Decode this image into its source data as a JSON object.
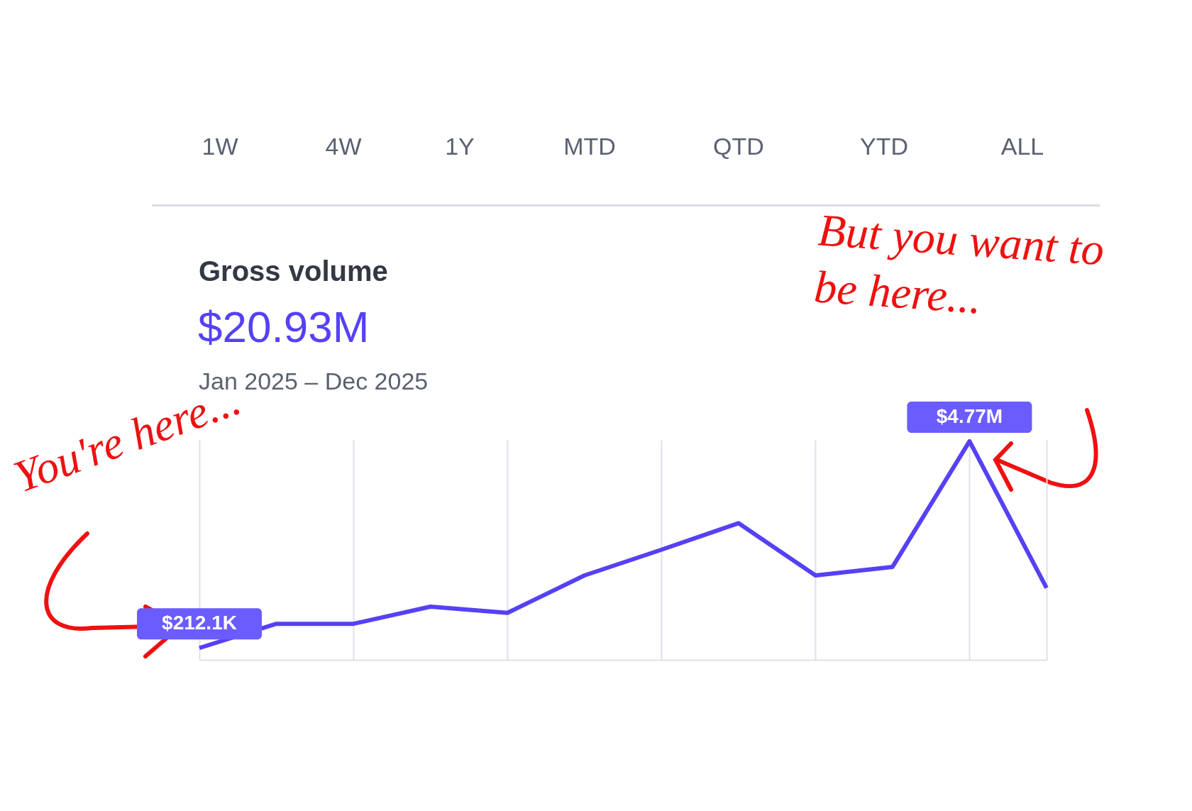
{
  "chart_data": {
    "type": "line",
    "title": "Gross volume",
    "subtitle": "Jan 2025 – Dec 2025",
    "ylim": [
      -50000,
      4800000
    ],
    "grid": "x",
    "marker": "none",
    "line_style": "solid",
    "categories": [
      null,
      null,
      null,
      null,
      null,
      null,
      null,
      null,
      null,
      null,
      null,
      null
    ],
    "series": [
      {
        "color": "#5541f5",
        "values": [
          212100,
          745000,
          745000,
          1124000,
          986000,
          1812000,
          2379000,
          2964000,
          1812000,
          2001000,
          4770000,
          1536000
        ],
        "value_labels": [
          "$212.1K",
          null,
          null,
          null,
          null,
          null,
          null,
          null,
          null,
          null,
          "$4.77M",
          null
        ]
      }
    ],
    "annotations": [
      "1W",
      "4W",
      "1Y",
      "MTD",
      "QTD",
      "YTD",
      "ALL",
      "$20.93M",
      "You're here...",
      "But you want to be here..."
    ]
  }
}
